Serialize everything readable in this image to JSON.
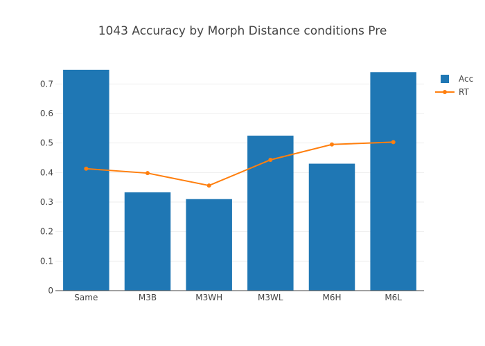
{
  "chart_data": {
    "type": "bar",
    "title": "1043 Accuracy by Morph Distance conditions Pre",
    "xlabel": "",
    "ylabel": "",
    "categories": [
      "Same",
      "M3B",
      "M3WH",
      "M3WL",
      "M6H",
      "M6L"
    ],
    "ylim": [
      0,
      0.75
    ],
    "yticks": [
      0,
      0.1,
      0.2,
      0.3,
      0.4,
      0.5,
      0.6,
      0.7
    ],
    "ytick_labels": [
      "0",
      "0.1",
      "0.2",
      "0.3",
      "0.4",
      "0.5",
      "0.6",
      "0.7"
    ],
    "grid": true,
    "legend_position": "top-right",
    "series": [
      {
        "name": "Acc",
        "type": "bar",
        "color": "#1f77b4",
        "values": [
          0.748,
          0.333,
          0.31,
          0.525,
          0.43,
          0.74
        ]
      },
      {
        "name": "RT",
        "type": "line",
        "color": "#ff7f0e",
        "values": [
          0.413,
          0.398,
          0.356,
          0.443,
          0.495,
          0.503
        ]
      }
    ]
  }
}
